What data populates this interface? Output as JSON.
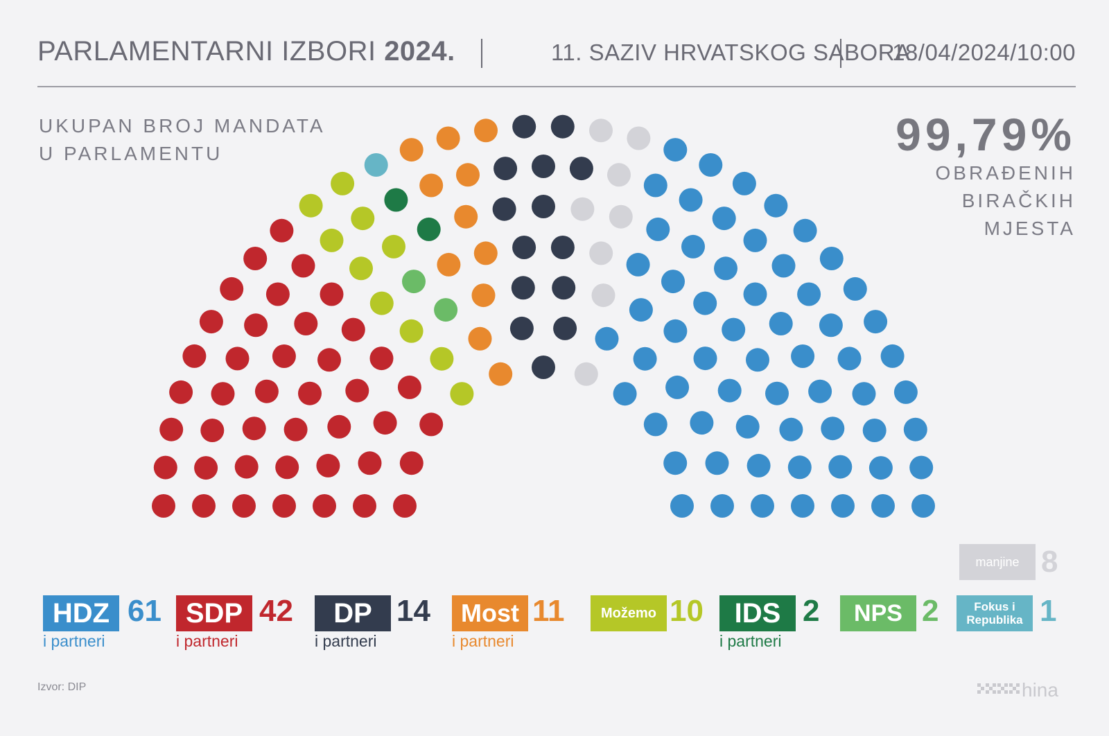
{
  "header": {
    "title_light": "PARLAMENTARNI IZBORI ",
    "title_bold": "2024.",
    "subtitle": "11. SAZIV HRVATSKOG SABORA",
    "datetime": "18/04/2024/10:00"
  },
  "subtitle": {
    "line1": "UKUPAN BROJ MANDATA",
    "line2": "U PARLAMENTU"
  },
  "processed": {
    "value": "99,79%",
    "line1": "OBRAĐENIH",
    "line2": "BIRAČKIH",
    "line3": "MJESTA"
  },
  "chart_data": {
    "type": "parliament",
    "total_seats": 151,
    "series": [
      {
        "name": "SDP",
        "partners": "i partneri",
        "seats": 42,
        "seats_label": "42",
        "color": "#c0272d"
      },
      {
        "name": "Možemo",
        "partners": "",
        "seats": 10,
        "seats_label": "10",
        "color": "#b5c727"
      },
      {
        "name": "NPS",
        "partners": "",
        "seats": 2,
        "seats_label": "2",
        "color": "#6bbb67"
      },
      {
        "name": "Fokus i Republika",
        "name_line1": "Fokus i",
        "name_line2": "Republika",
        "partners": "",
        "seats": 1,
        "seats_label": "1",
        "color": "#66b5c6"
      },
      {
        "name": "IDS",
        "partners": "i partneri",
        "seats": 2,
        "seats_label": "2",
        "color": "#1e7a46"
      },
      {
        "name": "Most",
        "partners": "i partneri",
        "seats": 11,
        "seats_label": "11",
        "color": "#e8892e"
      },
      {
        "name": "DP",
        "partners": "i partneri",
        "seats": 14,
        "seats_label": "14",
        "color": "#333c4e"
      },
      {
        "name": "manjine",
        "partners": "",
        "seats": 8,
        "seats_label": "8",
        "color": "#d3d3d8"
      },
      {
        "name": "HDZ",
        "partners": "i partneri",
        "seats": 61,
        "seats_label": "61",
        "color": "#3a8ecb"
      }
    ]
  },
  "source": "Izvor: DIP",
  "logo_text": "hina"
}
